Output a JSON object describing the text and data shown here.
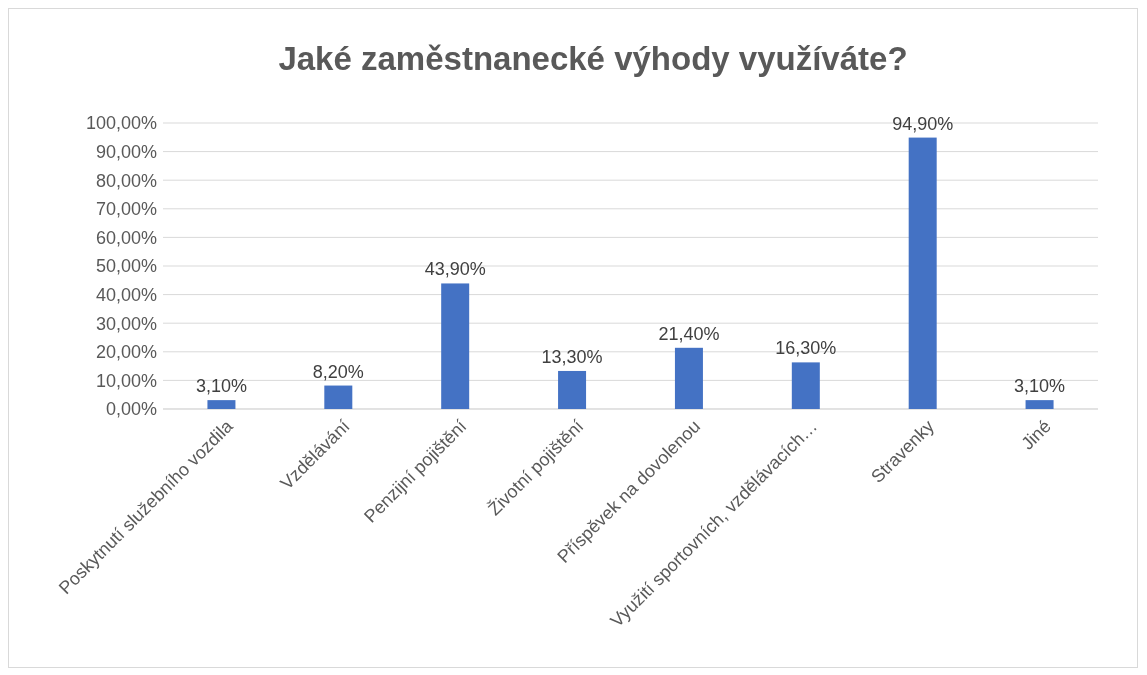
{
  "chart_data": {
    "type": "bar",
    "title": "Jaké zaměstnanecké výhody využíváte?",
    "categories": [
      "Poskytnutí služebního vozdila",
      "Vzdělávání",
      "Penzijní pojištění",
      "Životní pojištění",
      "Příspěvek na dovolenou",
      "Využití sportovních, vzdělávacích…",
      "Stravenky",
      "Jiné"
    ],
    "values": [
      3.1,
      8.2,
      43.9,
      13.3,
      21.4,
      16.3,
      94.9,
      3.1
    ],
    "value_labels": [
      "3,10%",
      "8,20%",
      "43,90%",
      "13,30%",
      "21,40%",
      "16,30%",
      "94,90%",
      "3,10%"
    ],
    "color": "#4472c4",
    "ylim": [
      0,
      100
    ],
    "yticks": [
      {
        "value": 0,
        "label": "0,00%"
      },
      {
        "value": 10,
        "label": "10,00%"
      },
      {
        "value": 20,
        "label": "20,00%"
      },
      {
        "value": 30,
        "label": "30,00%"
      },
      {
        "value": 40,
        "label": "40,00%"
      },
      {
        "value": 50,
        "label": "50,00%"
      },
      {
        "value": 60,
        "label": "60,00%"
      },
      {
        "value": 70,
        "label": "70,00%"
      },
      {
        "value": 80,
        "label": "80,00%"
      },
      {
        "value": 90,
        "label": "90,00%"
      },
      {
        "value": 100,
        "label": "100,00%"
      }
    ],
    "grid": "y"
  }
}
